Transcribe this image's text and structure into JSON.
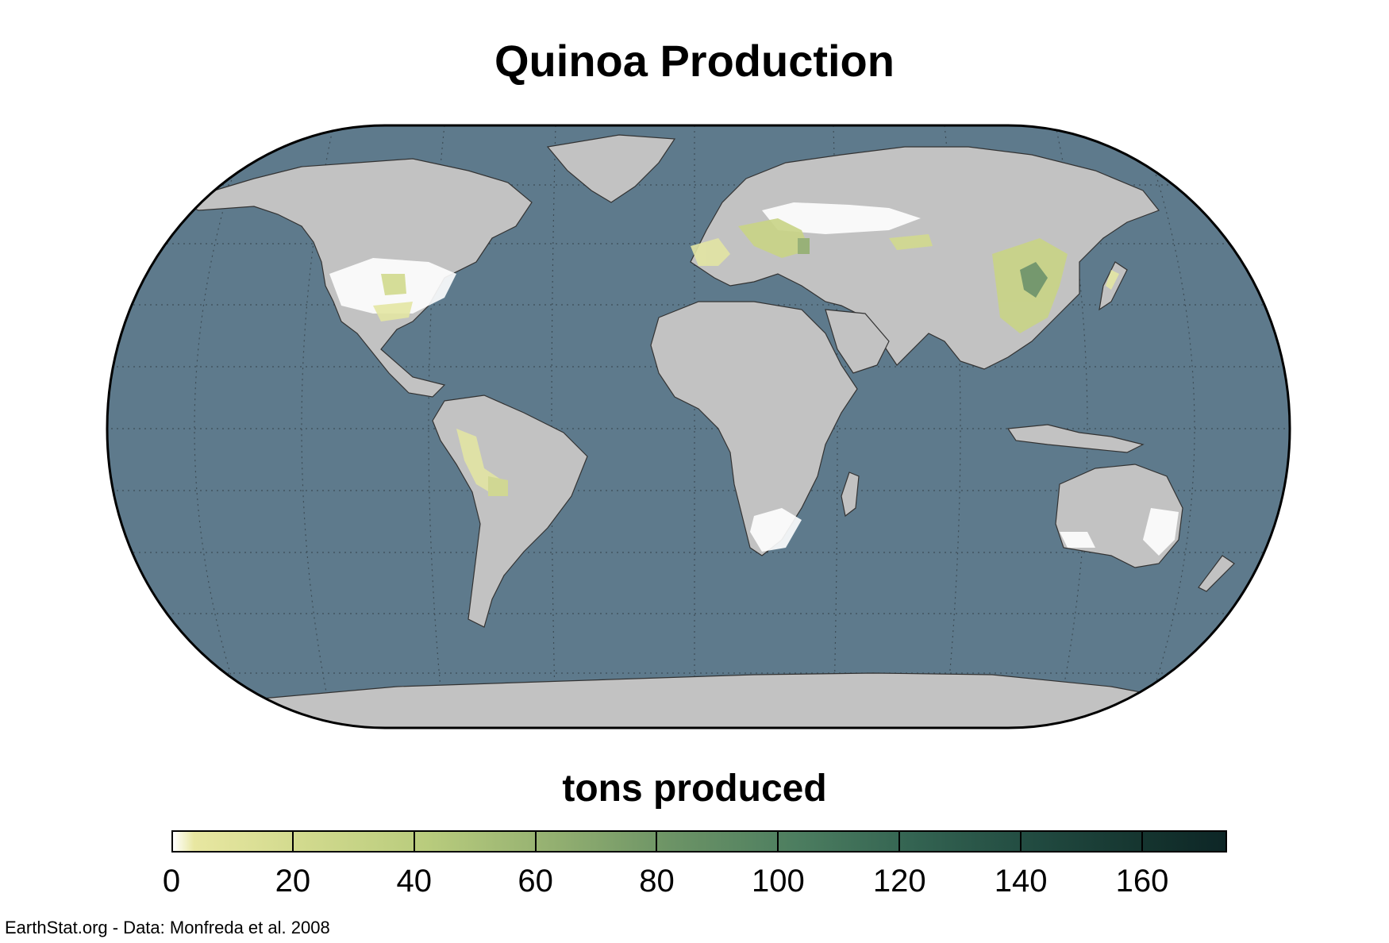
{
  "title": "Quinoa Production",
  "legend": {
    "title": "tons produced",
    "ticks": [
      "0",
      "20",
      "40",
      "60",
      "80",
      "100",
      "120",
      "140",
      "160"
    ],
    "max_value": 174,
    "colors": {
      "low": "#e8e7a1",
      "mid": "#6d9466",
      "high": "#0d2626"
    }
  },
  "credit": "EarthStat.org - Data: Monfreda et al. 2008",
  "map": {
    "projection": "Robinson",
    "ocean_color": "#5e7a8c",
    "land_color": "#c2c2c2",
    "no_data_color": "#ffffff",
    "graticule": "dotted"
  }
}
